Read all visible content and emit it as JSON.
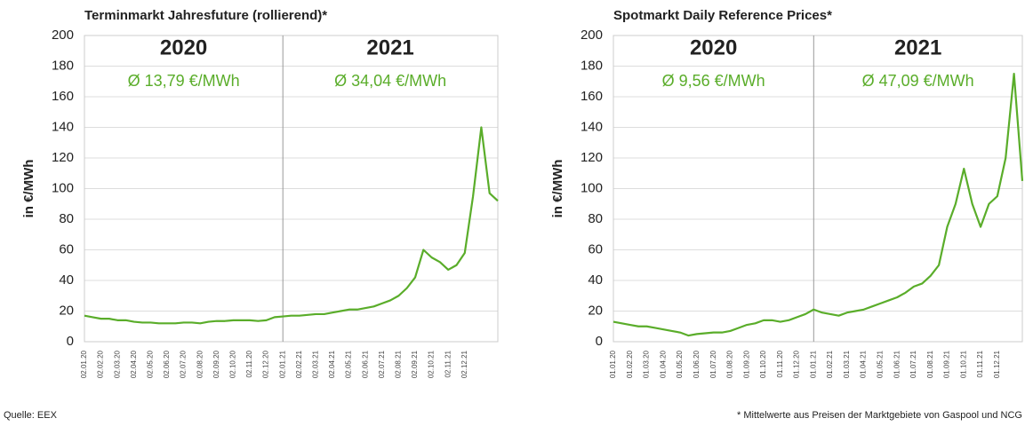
{
  "chart_data": [
    {
      "type": "line",
      "title": "Terminmarkt Jahresfuture (rollierend)*",
      "y_label": "in €/MWh",
      "annotations": [
        "2020",
        "Ø 13,79 €/MWh",
        "2021",
        "Ø 34,04 €/MWh"
      ],
      "categories": [
        "02.01.20",
        null,
        "02.02.20",
        null,
        "02.03.20",
        null,
        "02.04.20",
        null,
        "02.05.20",
        null,
        "02.06.20",
        null,
        "02.07.20",
        null,
        "02.08.20",
        null,
        "02.09.20",
        null,
        "02.10.20",
        null,
        "02.11.20",
        null,
        "02.12.20",
        null,
        "02.01.21",
        null,
        "02.02.21",
        null,
        "02.03.21",
        null,
        "02.04.21",
        null,
        "02.05.21",
        null,
        "02.06.21",
        null,
        "02.07.21",
        null,
        "02.08.21",
        null,
        "02.09.21",
        null,
        "02.10.21",
        null,
        "02.11.21",
        null,
        "02.12.21",
        null,
        null,
        null,
        null
      ],
      "series": [
        {
          "color": "#5aad2a",
          "values": [
            17,
            16,
            15,
            15,
            14,
            14,
            13,
            12.5,
            12.5,
            12,
            12,
            12,
            12.5,
            12.5,
            12,
            13,
            13.5,
            13.5,
            14,
            14,
            14,
            13.5,
            14,
            16,
            16.5,
            17,
            17,
            17.5,
            18,
            18,
            19,
            20,
            21,
            21,
            22,
            23,
            25,
            27,
            30,
            35,
            42,
            60,
            55,
            52,
            47,
            50,
            58,
            95,
            140,
            97,
            92
          ]
        }
      ],
      "ylim": [
        0,
        200
      ],
      "yticks": [
        0,
        20,
        40,
        60,
        80,
        100,
        120,
        140,
        160,
        180,
        200
      ],
      "grid": true
    },
    {
      "type": "line",
      "title": "Spotmarkt Daily Reference Prices*",
      "y_label": "in €/MWh",
      "annotations": [
        "2020",
        "Ø 9,56 €/MWh",
        "2021",
        "Ø 47,09 €/MWh"
      ],
      "categories": [
        "01.01.20",
        null,
        "01.02.20",
        null,
        "01.03.20",
        null,
        "01.04.20",
        null,
        "01.05.20",
        null,
        "01.06.20",
        null,
        "01.07.20",
        null,
        "01.08.20",
        null,
        "01.09.20",
        null,
        "01.10.20",
        null,
        "01.11.20",
        null,
        "01.12.20",
        null,
        "01.01.21",
        null,
        "01.02.21",
        null,
        "01.03.21",
        null,
        "01.04.21",
        null,
        "01.05.21",
        null,
        "01.06.21",
        null,
        "01.07.21",
        null,
        "01.08.21",
        null,
        "01.09.21",
        null,
        "01.10.21",
        null,
        "01.11.21",
        null,
        "01.12.21",
        null,
        null,
        null
      ],
      "series": [
        {
          "color": "#5aad2a",
          "values": [
            13,
            12,
            11,
            10,
            10,
            9,
            8,
            7,
            6,
            4,
            5,
            5.5,
            6,
            6,
            7,
            9,
            11,
            12,
            14,
            14,
            13,
            14,
            16,
            18,
            21,
            19,
            18,
            17,
            19,
            20,
            21,
            23,
            25,
            27,
            29,
            32,
            36,
            38,
            43,
            50,
            75,
            90,
            113,
            90,
            75,
            90,
            95,
            120,
            175,
            105
          ]
        }
      ],
      "ylim": [
        0,
        200
      ],
      "yticks": [
        0,
        20,
        40,
        60,
        80,
        100,
        120,
        140,
        160,
        180,
        200
      ],
      "grid": true
    }
  ],
  "footer": {
    "source": "Quelle: EEX",
    "note": "* Mittelwerte aus Preisen der Marktgebiete von Gaspool und NCG"
  }
}
